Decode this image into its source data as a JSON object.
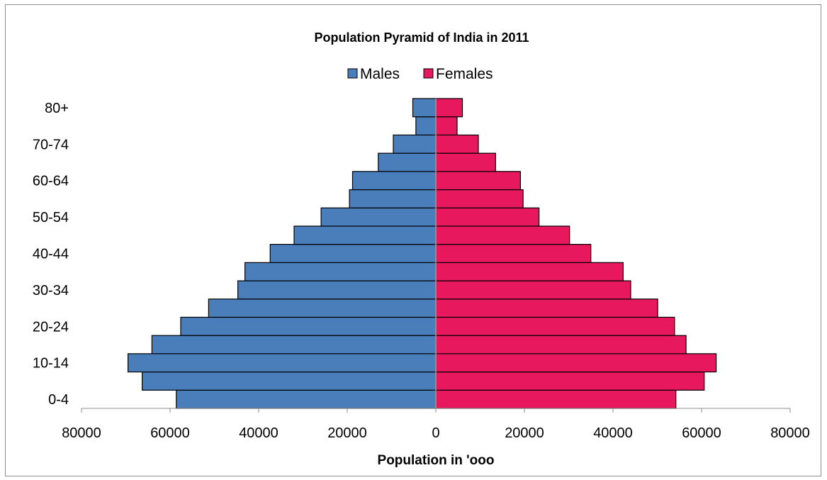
{
  "chart_data": {
    "type": "bar",
    "orientation": "horizontal",
    "title": "Population Pyramid of India in 2011",
    "xlabel": "Population in 'ooo",
    "ylabel": "",
    "xlim": [
      -80000,
      80000
    ],
    "x_ticks": [
      "80000",
      "60000",
      "40000",
      "20000",
      "0",
      "20000",
      "40000",
      "60000",
      "80000"
    ],
    "y_tick_labels": [
      "0-4",
      "10-14",
      "20-24",
      "30-34",
      "40-44",
      "50-54",
      "60-64",
      "70-74",
      "80+"
    ],
    "categories": [
      "0-4",
      "5-9",
      "10-14",
      "15-19",
      "20-24",
      "25-29",
      "30-34",
      "35-39",
      "40-44",
      "45-49",
      "50-54",
      "55-59",
      "60-64",
      "65-69",
      "70-74",
      "75-79",
      "80+"
    ],
    "series": [
      {
        "name": "Males",
        "color": "#4a7ebb",
        "values": [
          58600,
          66300,
          69500,
          64100,
          57600,
          51300,
          44700,
          43100,
          37400,
          32000,
          25900,
          19500,
          18800,
          13000,
          9600,
          4500,
          5200
        ]
      },
      {
        "name": "Females",
        "color": "#e8185f",
        "values": [
          54200,
          60600,
          63300,
          56500,
          53900,
          50100,
          44000,
          42300,
          35000,
          30200,
          23300,
          19700,
          19100,
          13500,
          9600,
          4800,
          6000
        ]
      }
    ],
    "legend_position": "top-center",
    "grid": false
  }
}
